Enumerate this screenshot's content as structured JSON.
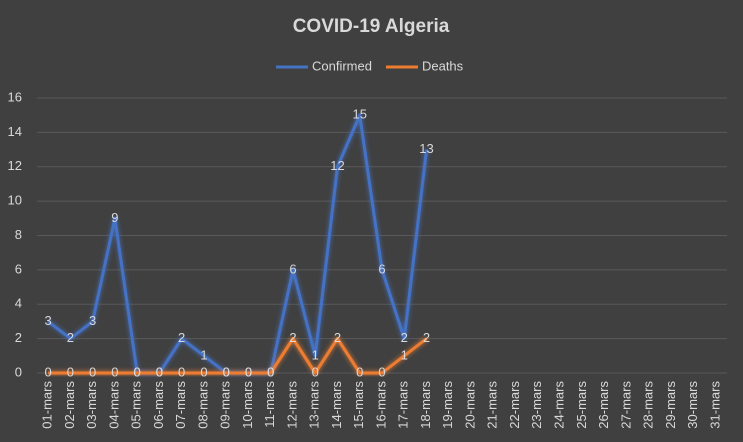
{
  "chart_data": {
    "type": "line",
    "title": "COVID-19 Algeria",
    "categories": [
      "01-mars",
      "02-mars",
      "03-mars",
      "04-mars",
      "05-mars",
      "06-mars",
      "07-mars",
      "08-mars",
      "09-mars",
      "10-mars",
      "11-mars",
      "12-mars",
      "13-mars",
      "14-mars",
      "15-mars",
      "16-mars",
      "17-mars",
      "18-mars",
      "19-mars",
      "20-mars",
      "21-mars",
      "22-mars",
      "23-mars",
      "24-mars",
      "25-mars",
      "26-mars",
      "27-mars",
      "28-mars",
      "29-mars",
      "30-mars",
      "31-mars"
    ],
    "series": [
      {
        "name": "Confirmed",
        "color": "#4472c4",
        "values": [
          3,
          2,
          3,
          9,
          0,
          0,
          2,
          1,
          0,
          0,
          0,
          6,
          1,
          12,
          15,
          6,
          2,
          13,
          null,
          null,
          null,
          null,
          null,
          null,
          null,
          null,
          null,
          null,
          null,
          null,
          null
        ]
      },
      {
        "name": "Deaths",
        "color": "#ed7d31",
        "values": [
          0,
          0,
          0,
          0,
          0,
          0,
          0,
          0,
          0,
          0,
          0,
          2,
          0,
          2,
          0,
          0,
          1,
          2,
          null,
          null,
          null,
          null,
          null,
          null,
          null,
          null,
          null,
          null,
          null,
          null,
          null
        ]
      }
    ],
    "ylim": [
      0,
      16
    ],
    "yticks": [
      0,
      2,
      4,
      6,
      8,
      10,
      12,
      14,
      16
    ],
    "grid": true,
    "legend": "top"
  }
}
